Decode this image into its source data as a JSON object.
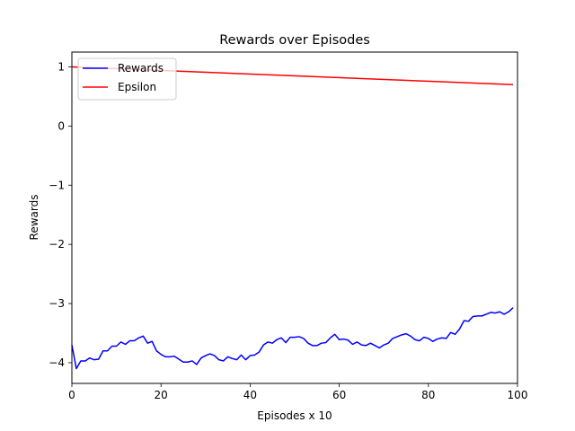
{
  "chart_data": {
    "type": "line",
    "title": "Rewards over Episodes",
    "xlabel": "Episodes x 10",
    "ylabel": "Rewards",
    "xlim": [
      0,
      100
    ],
    "ylim": [
      -4.35,
      1.25
    ],
    "xticks": [
      0,
      20,
      40,
      60,
      80,
      100
    ],
    "yticks": [
      1,
      0,
      -1,
      -2,
      -3,
      -4
    ],
    "ytick_labels": [
      "1",
      "0",
      "−1",
      "−2",
      "−3",
      "−4"
    ],
    "grid": false,
    "legend_position": "top-left",
    "series": [
      {
        "name": "Rewards",
        "color": "#0000ff",
        "x": [
          0,
          1,
          2,
          3,
          4,
          5,
          6,
          7,
          8,
          9,
          10,
          11,
          12,
          13,
          14,
          15,
          16,
          17,
          18,
          19,
          20,
          21,
          22,
          23,
          24,
          25,
          26,
          27,
          28,
          29,
          30,
          31,
          32,
          33,
          34,
          35,
          36,
          37,
          38,
          39,
          40,
          41,
          42,
          43,
          44,
          45,
          46,
          47,
          48,
          49,
          50,
          51,
          52,
          53,
          54,
          55,
          56,
          57,
          58,
          59,
          60,
          61,
          62,
          63,
          64,
          65,
          66,
          67,
          68,
          69,
          70,
          71,
          72,
          73,
          74,
          75,
          76,
          77,
          78,
          79,
          80,
          81,
          82,
          83,
          84,
          85,
          86,
          87,
          88,
          89,
          90,
          91,
          92,
          93,
          94,
          95,
          96,
          97,
          98,
          99
        ],
        "values": [
          -3.7,
          -4.1,
          -3.97,
          -3.97,
          -3.92,
          -3.95,
          -3.94,
          -3.8,
          -3.8,
          -3.72,
          -3.72,
          -3.65,
          -3.69,
          -3.63,
          -3.63,
          -3.58,
          -3.55,
          -3.67,
          -3.64,
          -3.8,
          -3.86,
          -3.9,
          -3.9,
          -3.89,
          -3.94,
          -3.99,
          -3.99,
          -3.97,
          -4.03,
          -3.92,
          -3.88,
          -3.85,
          -3.88,
          -3.95,
          -3.97,
          -3.9,
          -3.93,
          -3.95,
          -3.87,
          -3.95,
          -3.88,
          -3.87,
          -3.82,
          -3.7,
          -3.65,
          -3.67,
          -3.61,
          -3.58,
          -3.66,
          -3.57,
          -3.57,
          -3.56,
          -3.59,
          -3.67,
          -3.71,
          -3.71,
          -3.67,
          -3.66,
          -3.58,
          -3.52,
          -3.61,
          -3.6,
          -3.62,
          -3.69,
          -3.65,
          -3.7,
          -3.71,
          -3.67,
          -3.71,
          -3.75,
          -3.7,
          -3.67,
          -3.59,
          -3.56,
          -3.53,
          -3.51,
          -3.55,
          -3.61,
          -3.63,
          -3.57,
          -3.59,
          -3.64,
          -3.6,
          -3.58,
          -3.59,
          -3.49,
          -3.52,
          -3.43,
          -3.29,
          -3.3,
          -3.22,
          -3.21,
          -3.21,
          -3.18,
          -3.15,
          -3.16,
          -3.14,
          -3.18,
          -3.14,
          -3.07
        ]
      },
      {
        "name": "Epsilon",
        "color": "#ff0000",
        "x": [
          0,
          99
        ],
        "values": [
          1.0,
          0.7
        ]
      }
    ]
  }
}
